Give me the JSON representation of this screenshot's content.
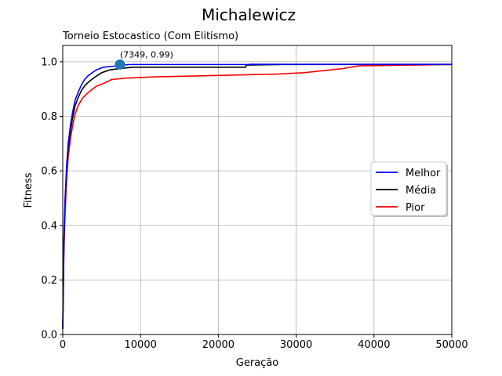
{
  "suptitle": "Michalewicz",
  "chart_data": {
    "type": "line",
    "title": "Torneio Estocastico (Com Elitismo)",
    "xlabel": "Geração",
    "ylabel": "Fitness",
    "xlim": [
      0,
      50000
    ],
    "ylim": [
      0,
      1.06
    ],
    "xticks": [
      0,
      10000,
      20000,
      30000,
      40000,
      50000
    ],
    "xtick_labels": [
      "0",
      "10000",
      "20000",
      "30000",
      "40000",
      "50000"
    ],
    "yticks": [
      0.0,
      0.2,
      0.4,
      0.6,
      0.8,
      1.0
    ],
    "ytick_labels": [
      "0.0",
      "0.2",
      "0.4",
      "0.6",
      "0.8",
      "1.0"
    ],
    "grid": true,
    "legend_position": "center-right",
    "annotation": {
      "x": 7349,
      "y": 0.99,
      "text": "(7349, 0.99)"
    },
    "series": [
      {
        "name": "Melhor",
        "color": "#0000ff",
        "points": [
          [
            0,
            0.02
          ],
          [
            150,
            0.35
          ],
          [
            300,
            0.5
          ],
          [
            500,
            0.62
          ],
          [
            700,
            0.7
          ],
          [
            1000,
            0.77
          ],
          [
            1300,
            0.82
          ],
          [
            1600,
            0.86
          ],
          [
            2000,
            0.89
          ],
          [
            2400,
            0.915
          ],
          [
            2800,
            0.935
          ],
          [
            3300,
            0.95
          ],
          [
            3800,
            0.96
          ],
          [
            4300,
            0.97
          ],
          [
            5200,
            0.98
          ],
          [
            7000,
            0.985
          ],
          [
            8500,
            0.99
          ],
          [
            24000,
            0.99
          ],
          [
            24000,
            0.991
          ],
          [
            50000,
            0.991
          ]
        ]
      },
      {
        "name": "Média",
        "color": "#000000",
        "points": [
          [
            0,
            0.02
          ],
          [
            150,
            0.33
          ],
          [
            300,
            0.48
          ],
          [
            500,
            0.6
          ],
          [
            700,
            0.68
          ],
          [
            1000,
            0.75
          ],
          [
            1300,
            0.8
          ],
          [
            1600,
            0.84
          ],
          [
            2000,
            0.87
          ],
          [
            2400,
            0.895
          ],
          [
            2900,
            0.915
          ],
          [
            3500,
            0.93
          ],
          [
            4200,
            0.945
          ],
          [
            5000,
            0.96
          ],
          [
            6000,
            0.97
          ],
          [
            7300,
            0.975
          ],
          [
            9000,
            0.98
          ],
          [
            23500,
            0.98
          ],
          [
            23600,
            0.988
          ],
          [
            28500,
            0.99
          ],
          [
            50000,
            0.99
          ]
        ]
      },
      {
        "name": "Pior",
        "color": "#ff0000",
        "points": [
          [
            0,
            0.02
          ],
          [
            150,
            0.3
          ],
          [
            300,
            0.45
          ],
          [
            500,
            0.57
          ],
          [
            700,
            0.65
          ],
          [
            1000,
            0.72
          ],
          [
            1300,
            0.77
          ],
          [
            1600,
            0.81
          ],
          [
            2000,
            0.84
          ],
          [
            2500,
            0.865
          ],
          [
            3000,
            0.88
          ],
          [
            3600,
            0.895
          ],
          [
            4300,
            0.91
          ],
          [
            5200,
            0.92
          ],
          [
            6300,
            0.935
          ],
          [
            8000,
            0.94
          ],
          [
            12000,
            0.945
          ],
          [
            20000,
            0.95
          ],
          [
            27500,
            0.955
          ],
          [
            31000,
            0.96
          ],
          [
            36000,
            0.975
          ],
          [
            38000,
            0.985
          ],
          [
            50000,
            0.99
          ]
        ]
      }
    ]
  }
}
